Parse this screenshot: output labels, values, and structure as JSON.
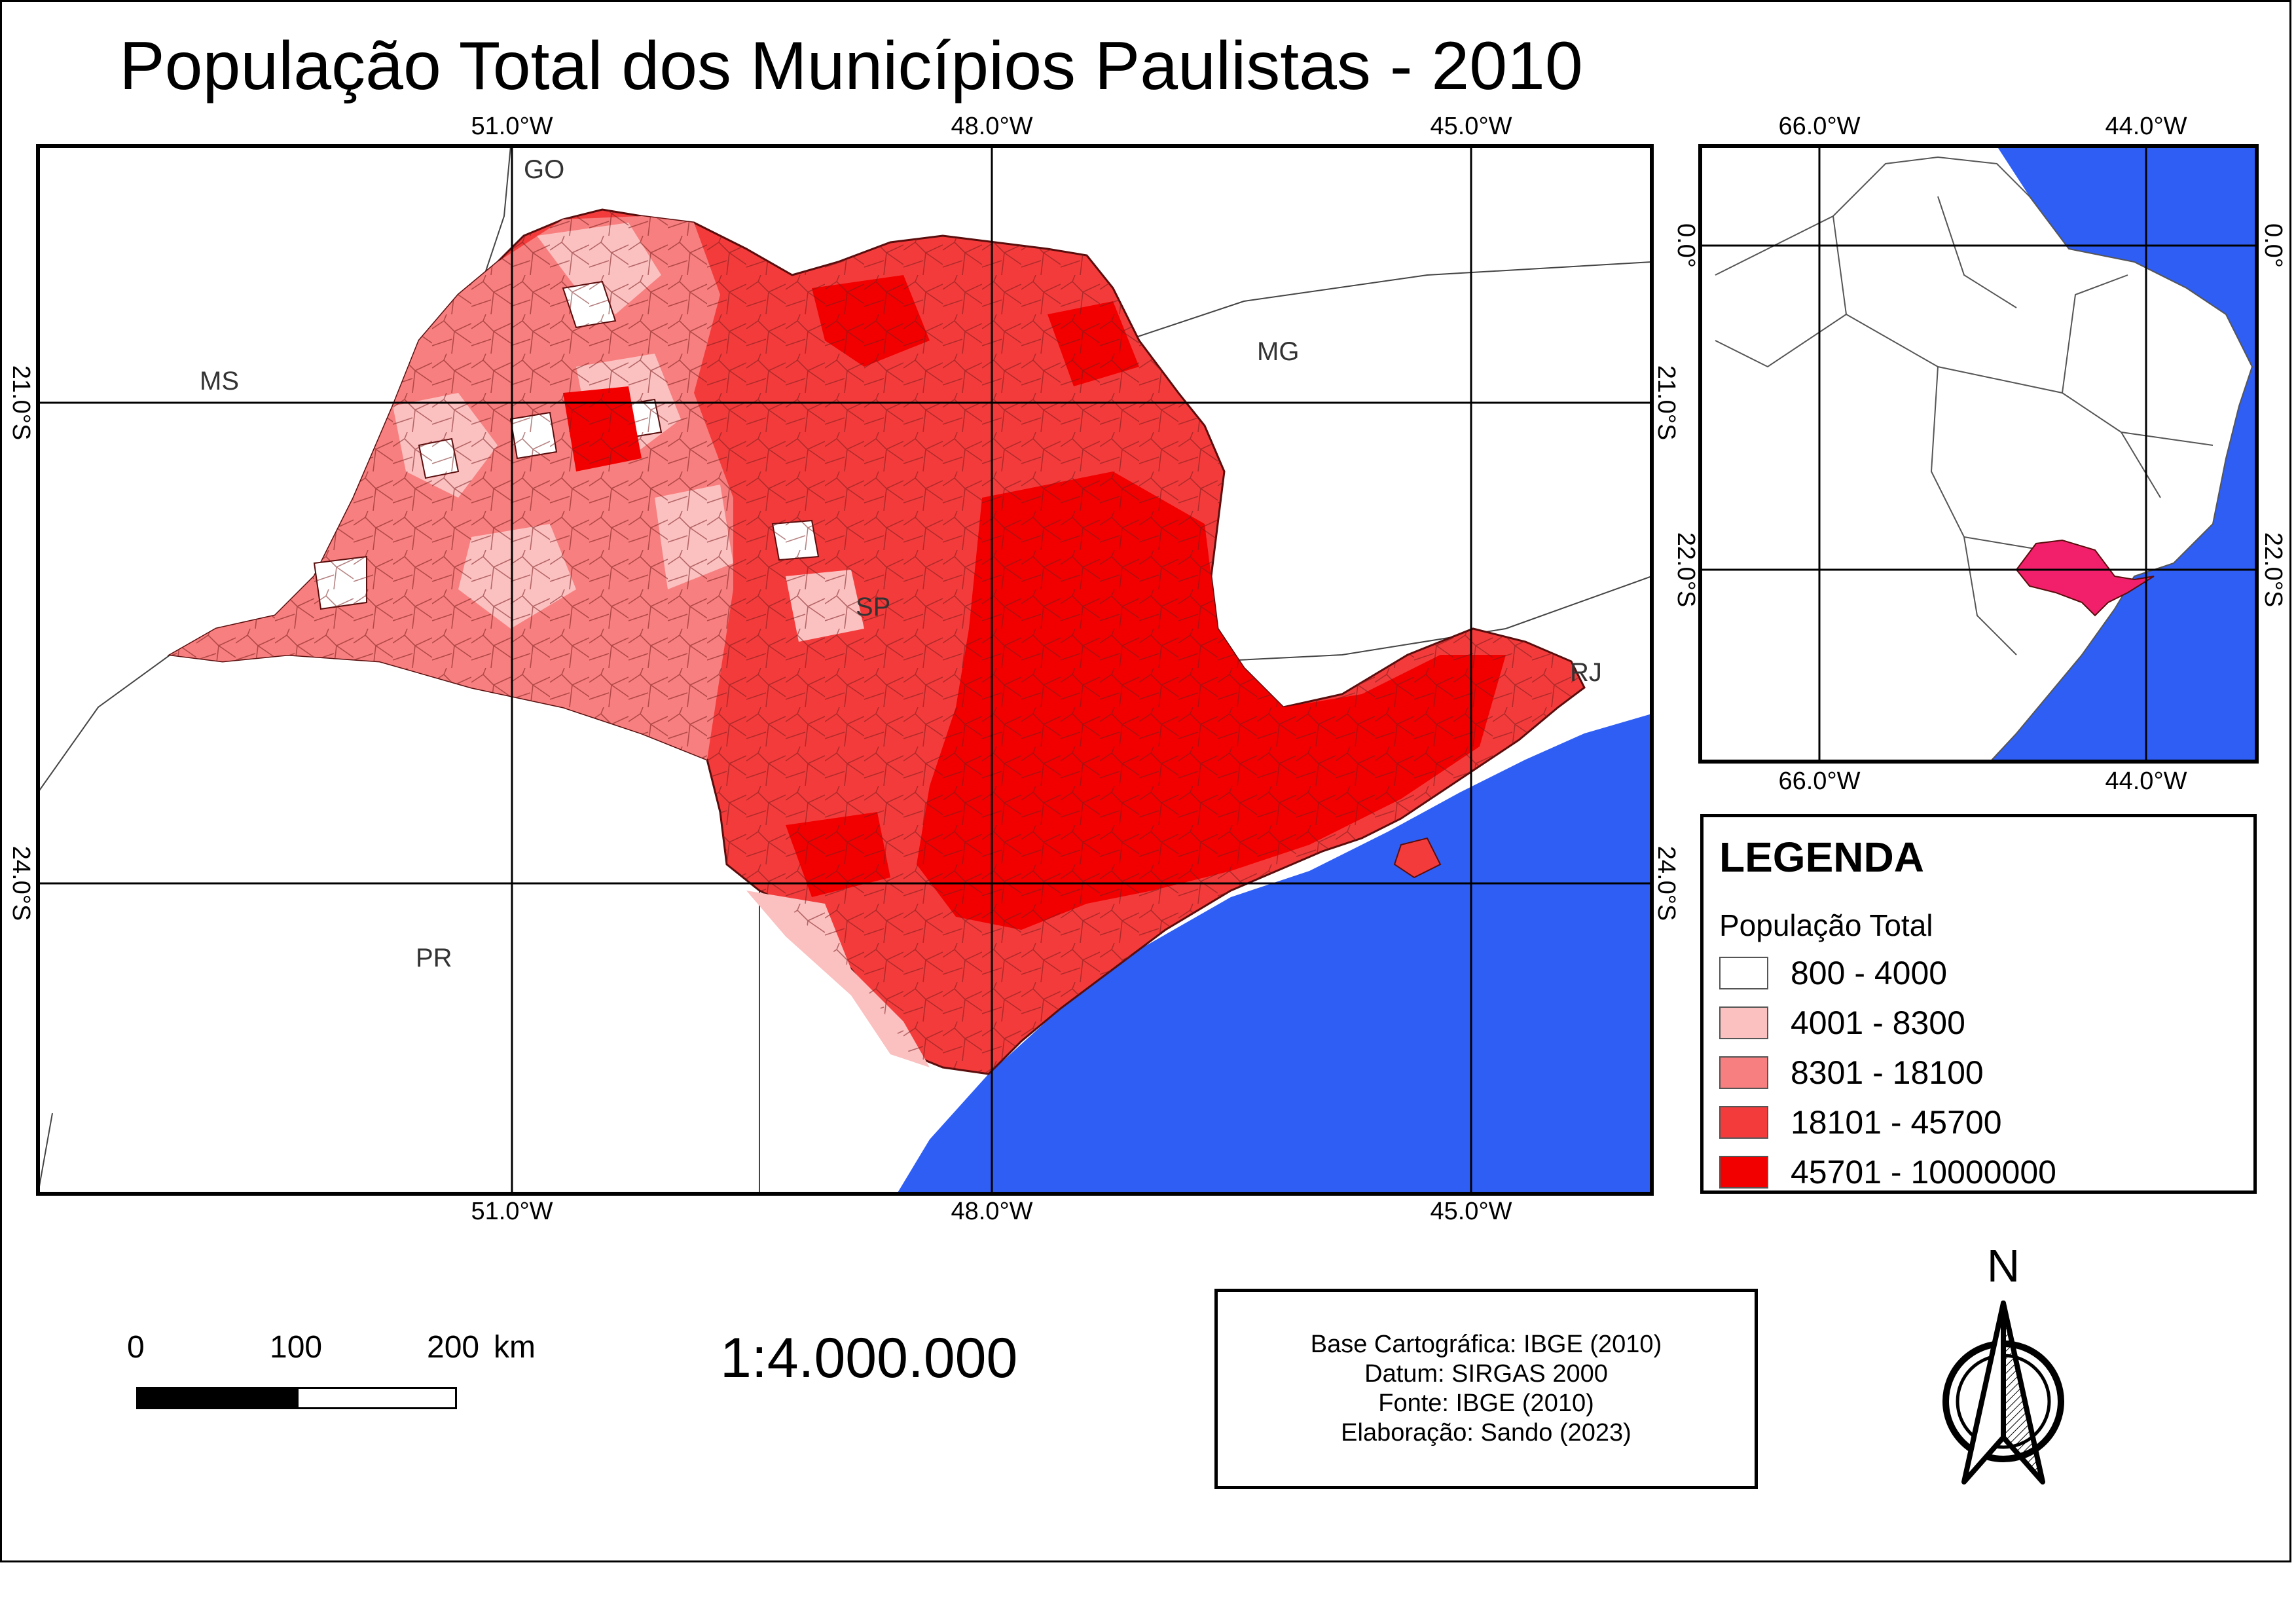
{
  "title": "População Total dos Municípios Paulistas - 2010",
  "main_map": {
    "top_ticks": [
      "51.0°W",
      "48.0°W",
      "45.0°W"
    ],
    "bottom_ticks": [
      "51.0°W",
      "48.0°W",
      "45.0°W"
    ],
    "left_ticks": [
      "21.0°S",
      "24.0°S"
    ],
    "right_ticks": [
      "21.0°S",
      "24.0°S"
    ],
    "state_labels": {
      "go": "GO",
      "ms": "MS",
      "mg": "MG",
      "sp": "SP",
      "rj": "RJ",
      "pr": "PR"
    },
    "colors": {
      "ocean": "#2f5ef4",
      "class1": "#ffffff",
      "class2": "#fbc0c0",
      "class3": "#f77f7f",
      "class4": "#f43b3b",
      "class5": "#f20000"
    }
  },
  "inset_map": {
    "top_ticks": [
      "66.0°W",
      "44.0°W"
    ],
    "bottom_ticks": [
      "66.0°W",
      "44.0°W"
    ],
    "left_ticks": [
      "0.0°",
      "22.0°S"
    ],
    "right_ticks": [
      "0.0°",
      "22.0°S"
    ],
    "highlight_color": "#f2206b",
    "ocean_color": "#2f5ef4"
  },
  "legend": {
    "title": "LEGENDA",
    "subtitle": "População Total",
    "items": [
      {
        "label": "800 - 4000",
        "color": "#ffffff"
      },
      {
        "label": "4001 - 8300",
        "color": "#fbc0c0"
      },
      {
        "label": "8301 - 18100",
        "color": "#f77f7f"
      },
      {
        "label": "18101 - 45700",
        "color": "#f43b3b"
      },
      {
        "label": "45701 - 10000000",
        "color": "#f20000"
      }
    ]
  },
  "scale_bar": {
    "labels": [
      "0",
      "100",
      "200"
    ],
    "unit": "km"
  },
  "scale_text": "1:4.000.000",
  "credits": [
    "Base Cartográfica: IBGE (2010)",
    "Datum: SIRGAS 2000",
    "Fonte: IBGE (2010)",
    "Elaboração: Sando (2023)"
  ],
  "north_arrow": {
    "label": "N"
  }
}
